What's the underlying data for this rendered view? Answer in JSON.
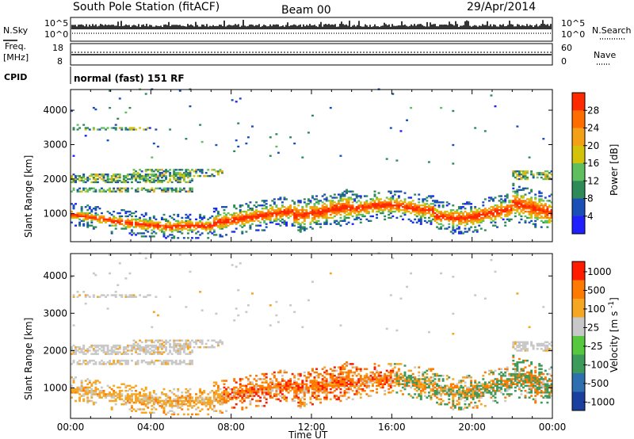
{
  "header": {
    "station": "South Pole Station (fitACF)",
    "beam": "Beam 00",
    "date": "29/Apr/2014"
  },
  "side_labels": {
    "nsky": "N.Sky",
    "nsky_ticks": [
      "10^5",
      "10^0"
    ],
    "nsearch": "N.Search",
    "nsearch_ticks": [
      "10^5",
      "10^0"
    ],
    "freq": "Freq.",
    "freq_unit": "[MHz]",
    "freq_ticks": [
      "18",
      "8"
    ],
    "nave": "Nave",
    "nave_ticks": [
      "60",
      "0"
    ],
    "cpid": "CPID",
    "cpid_value": "normal (fast) 151 RF"
  },
  "axes": {
    "xlabel": "Time UT",
    "ylabel": "Slant Range [km]",
    "x_ticks": [
      "00:00",
      "04:00",
      "08:00",
      "12:00",
      "16:00",
      "20:00",
      "00:00"
    ],
    "y_ticks": [
      "1000",
      "2000",
      "3000",
      "4000"
    ]
  },
  "chart_data": [
    {
      "type": "heatmap",
      "title": "",
      "xlabel": "",
      "ylabel": "Slant Range [km]",
      "x": [
        0,
        24
      ],
      "ylim": [
        180,
        4600
      ],
      "colorbar": {
        "label": "Power [dB]",
        "ticks": [
          "4",
          "8",
          "12",
          "16",
          "20",
          "24",
          "28"
        ],
        "range": [
          0,
          30
        ],
        "colors": [
          "#1f1fff",
          "#1a4fb8",
          "#2e8b57",
          "#5fbf5f",
          "#d4c20a",
          "#f3a017",
          "#ff6d00",
          "#ff2a00"
        ]
      }
    },
    {
      "type": "heatmap",
      "title": "",
      "xlabel": "Time UT",
      "ylabel": "Slant Range [km]",
      "x": [
        0,
        24
      ],
      "ylim": [
        180,
        4600
      ],
      "colorbar": {
        "label": "Velocity [m s^-1]",
        "ticks": [
          "1000",
          "500",
          "100",
          "25",
          "-25",
          "-100",
          "-500",
          "-1000"
        ],
        "range": [
          -1000,
          1000
        ],
        "colors": [
          "#1b3fa0",
          "#2e6fb0",
          "#3c9a5a",
          "#55c840",
          "#c8c8c8",
          "#f5a623",
          "#ff7a00",
          "#ff1a00"
        ]
      }
    }
  ],
  "colors": {
    "frame": "#000000",
    "background": "#ffffff",
    "noise_gray": "#c8c8c8"
  }
}
